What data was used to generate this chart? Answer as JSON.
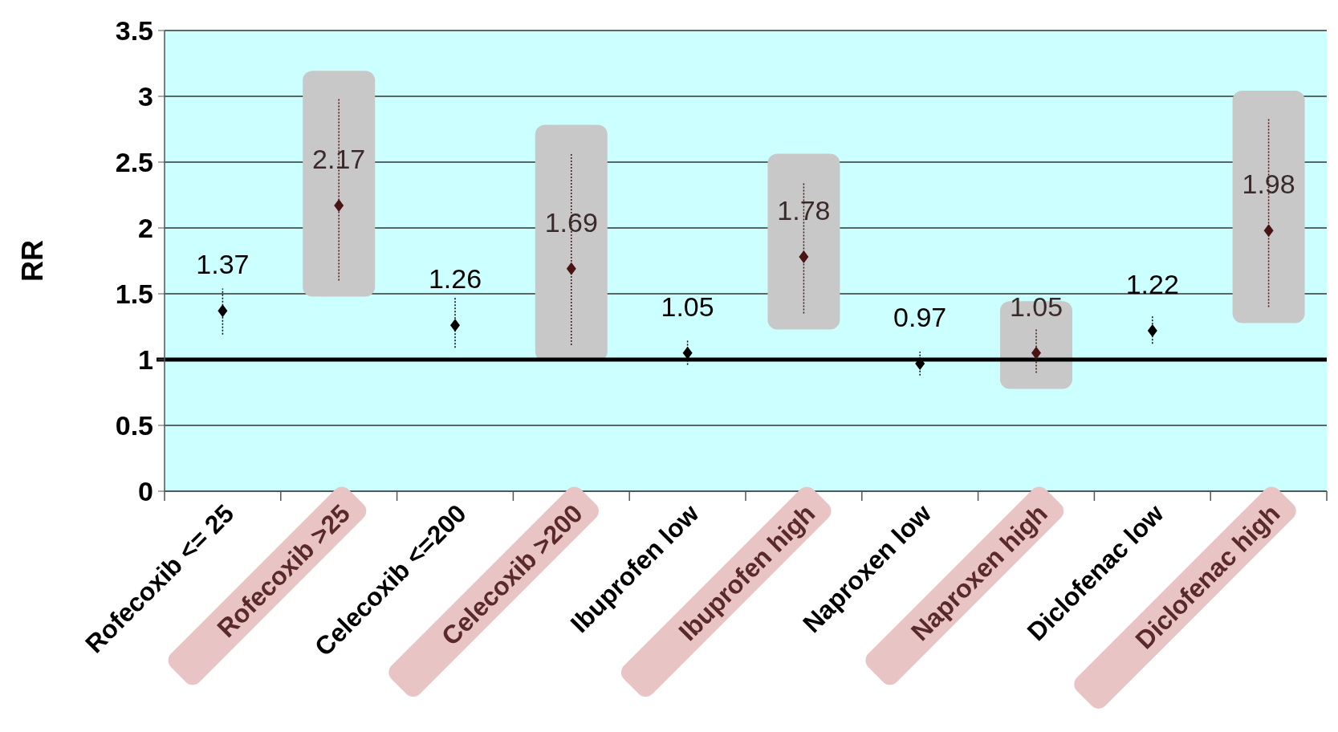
{
  "chart_data": {
    "type": "scatter",
    "ylabel": "RR",
    "categories": [
      "Rofecoxib <= 25",
      "Rofecoxib >25",
      "Celecoxib <=200",
      "Celecoxib >200",
      "Ibuprofen low",
      "Ibuprofen high",
      "Naproxen low",
      "Naproxen high",
      "Diclofenac low",
      "Diclofenac high"
    ],
    "values": [
      1.37,
      2.17,
      1.26,
      1.69,
      1.05,
      1.78,
      0.97,
      1.05,
      1.22,
      1.98
    ],
    "errors": [
      [
        1.19,
        1.54
      ],
      [
        1.6,
        2.98
      ],
      [
        1.09,
        1.48
      ],
      [
        1.11,
        2.57
      ],
      [
        0.96,
        1.15
      ],
      [
        1.35,
        2.35
      ],
      [
        0.88,
        1.06
      ],
      [
        0.9,
        1.23
      ],
      [
        1.12,
        1.34
      ],
      [
        1.4,
        2.83
      ]
    ],
    "colors": [
      "#000000",
      "#4a1414",
      "#000000",
      "#4a1414",
      "#000000",
      "#4a1414",
      "#000000",
      "#4a1414",
      "#000000",
      "#4a1414"
    ],
    "ylim": [
      0,
      3.5
    ],
    "yticks": [
      0,
      0.5,
      1,
      1.5,
      2,
      2.5,
      3,
      3.5
    ],
    "grid": "y",
    "marker": "diamond",
    "data_labels": true,
    "ref_lines": [
      {
        "axis": "y",
        "value": 1,
        "color": "#000000"
      }
    ]
  }
}
